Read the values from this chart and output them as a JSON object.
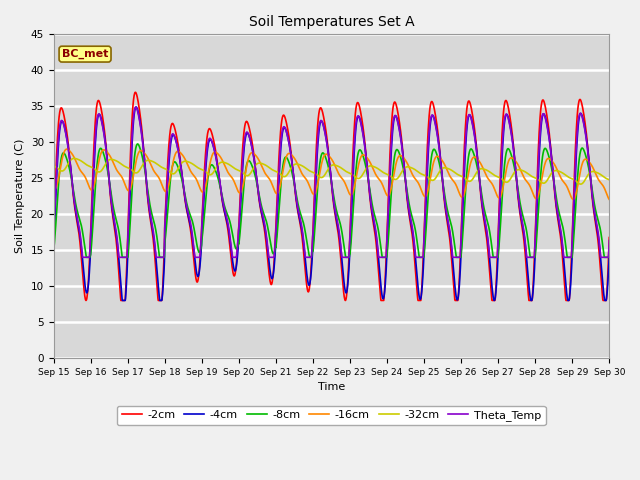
{
  "title": "Soil Temperatures Set A",
  "xlabel": "Time",
  "ylabel": "Soil Temperature (C)",
  "ylim": [
    0,
    45
  ],
  "tick_labels": [
    "Sep 15",
    "Sep 16",
    "Sep 17",
    "Sep 18",
    "Sep 19",
    "Sep 20",
    "Sep 21",
    "Sep 22",
    "Sep 23",
    "Sep 24",
    "Sep 25",
    "Sep 26",
    "Sep 27",
    "Sep 28",
    "Sep 29",
    "Sep 30"
  ],
  "annotation_text": "BC_met",
  "fig_facecolor": "#f0f0f0",
  "plot_facecolor": "#d8d8d8",
  "series": [
    {
      "label": "-2cm",
      "color": "#ff0000",
      "lw": 1.2
    },
    {
      "label": "-4cm",
      "color": "#0000cc",
      "lw": 1.2
    },
    {
      "label": "-8cm",
      "color": "#00bb00",
      "lw": 1.2
    },
    {
      "label": "-16cm",
      "color": "#ff8800",
      "lw": 1.2
    },
    {
      "label": "-32cm",
      "color": "#cccc00",
      "lw": 1.2
    },
    {
      "label": "Theta_Temp",
      "color": "#8800cc",
      "lw": 1.2
    }
  ],
  "legend_fontsize": 8,
  "legend_ncol": 6
}
